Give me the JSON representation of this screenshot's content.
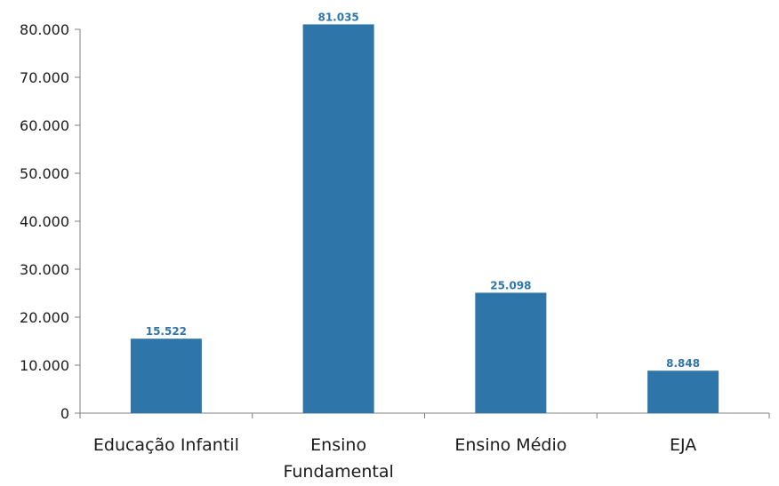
{
  "chart_data": {
    "type": "bar",
    "categories": [
      [
        "Educação Infantil"
      ],
      [
        "Ensino",
        "Fundamental"
      ],
      [
        "Ensino Médio"
      ],
      [
        "EJA"
      ]
    ],
    "values": [
      15522,
      81035,
      25098,
      8848
    ],
    "value_labels": [
      "15.522",
      "81.035",
      "25.098",
      "8.848"
    ],
    "y_ticks": [
      0,
      10000,
      20000,
      30000,
      40000,
      50000,
      60000,
      70000,
      80000
    ],
    "y_tick_labels": [
      "0",
      "10.000",
      "20.000",
      "30.000",
      "40.000",
      "50.000",
      "60.000",
      "70.000",
      "80.000"
    ],
    "ylim": [
      0,
      80000
    ],
    "title": "",
    "xlabel": "",
    "ylabel": "",
    "grid": false,
    "legend": "none",
    "colors": {
      "bar": "#2E75AA",
      "data_label": "#2E75AA",
      "axis": "#7f7f7f",
      "text": "#1a1a1a"
    }
  }
}
